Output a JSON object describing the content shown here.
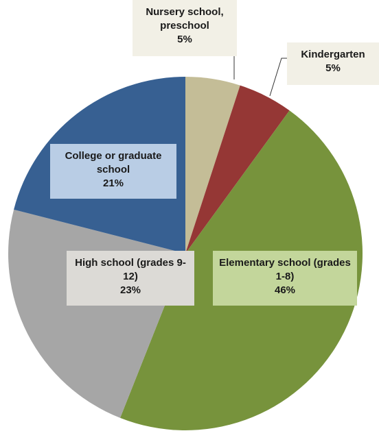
{
  "chart_data": {
    "type": "pie",
    "categories": [
      "Nursery school, preschool",
      "Kindergarten",
      "Elementary school (grades 1-8)",
      "High school (grades 9-12)",
      "College or graduate school"
    ],
    "values": [
      5,
      5,
      46,
      23,
      21
    ],
    "value_labels": [
      "5%",
      "5%",
      "46%",
      "23%",
      "21%"
    ],
    "colors": [
      "#c4bd97",
      "#953735",
      "#77933c",
      "#a6a6a6",
      "#376092"
    ]
  }
}
